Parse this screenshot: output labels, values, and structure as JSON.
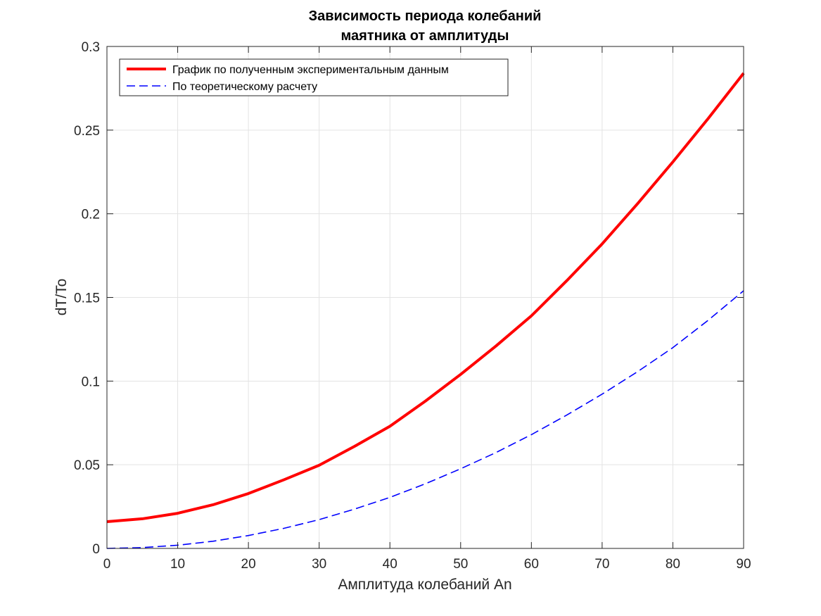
{
  "chart_data": {
    "type": "line",
    "title": [
      "Зависимость периода колебаний",
      "маятника от амплитуды"
    ],
    "xlabel": "Амплитуда колебаний  An",
    "ylabel": "dT/To",
    "xlim": [
      0,
      90
    ],
    "ylim": [
      0,
      0.3
    ],
    "xticks": [
      0,
      10,
      20,
      30,
      40,
      50,
      60,
      70,
      80,
      90
    ],
    "xtick_labels": [
      "0",
      "10",
      "20",
      "30",
      "40",
      "50",
      "60",
      "70",
      "80",
      "90"
    ],
    "yticks": [
      0,
      0.05,
      0.1,
      0.15,
      0.2,
      0.25,
      0.3
    ],
    "ytick_labels": [
      "0",
      "0.05",
      "0.1",
      "0.15",
      "0.2",
      "0.25",
      "0.3"
    ],
    "grid": true,
    "legend_position": "top-left",
    "series": [
      {
        "name": "График по полученным экспериментальным данным",
        "color": "#ff0000",
        "style": "solid",
        "x": [
          0,
          5,
          10,
          15,
          20,
          25,
          30,
          35,
          40,
          45,
          50,
          55,
          60,
          65,
          70,
          75,
          80,
          85,
          90
        ],
        "y": [
          0.016,
          0.0177,
          0.021,
          0.0261,
          0.0328,
          0.041,
          0.0497,
          0.061,
          0.073,
          0.088,
          0.104,
          0.121,
          0.139,
          0.16,
          0.182,
          0.206,
          0.231,
          0.257,
          0.284
        ]
      },
      {
        "name": "По теоретическому расчету",
        "color": "#0000ff",
        "style": "dashed",
        "x": [
          0,
          5,
          10,
          15,
          20,
          25,
          30,
          35,
          40,
          45,
          50,
          55,
          60,
          65,
          70,
          75,
          80,
          85,
          90
        ],
        "y": [
          0,
          0.0005,
          0.0019,
          0.0043,
          0.0077,
          0.012,
          0.0172,
          0.0235,
          0.0305,
          0.0386,
          0.0476,
          0.0573,
          0.068,
          0.0797,
          0.0922,
          0.1056,
          0.12,
          0.1364,
          0.154
        ]
      }
    ]
  }
}
